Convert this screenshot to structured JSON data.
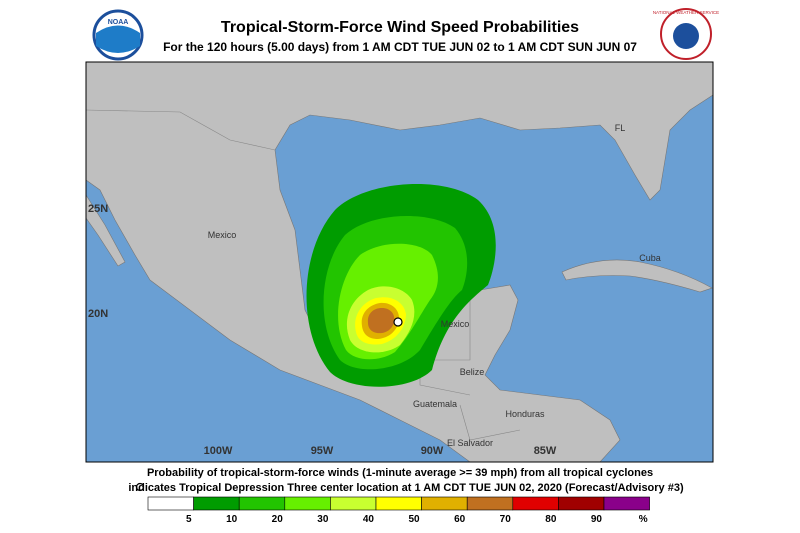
{
  "header": {
    "title": "Tropical-Storm-Force Wind Speed Probabilities",
    "subtitle": "For the 120 hours (5.00 days) from 1 AM CDT TUE JUN 02 to 1 AM CDT SUN JUN 07",
    "left_logo": "NOAA",
    "right_logo": "NATIONAL WEATHER SERVICE"
  },
  "map": {
    "lat_labels": [
      "25N",
      "20N"
    ],
    "lon_labels": [
      "100W",
      "95W",
      "90W",
      "85W"
    ],
    "places": [
      "Mexico",
      "Mexico",
      "FL",
      "Cuba",
      "Belize",
      "Guatemala",
      "Honduras",
      "El Salvador"
    ]
  },
  "footer": {
    "line1": "Probability of tropical-storm-force winds (1-minute average >= 39 mph) from all tropical cyclones",
    "line2": "indicates Tropical Depression Three center location at 1 AM CDT TUE JUN 02, 2020 (Forecast/Advisory #3)"
  },
  "legend": {
    "colors": [
      "#ffffff",
      "#009c00",
      "#22c400",
      "#66f000",
      "#c8ff30",
      "#ffff00",
      "#e0b000",
      "#c07020",
      "#e00000",
      "#a00000",
      "#8a008a"
    ],
    "labels": [
      "5",
      "10",
      "20",
      "30",
      "40",
      "50",
      "60",
      "70",
      "80",
      "90",
      "%"
    ]
  }
}
